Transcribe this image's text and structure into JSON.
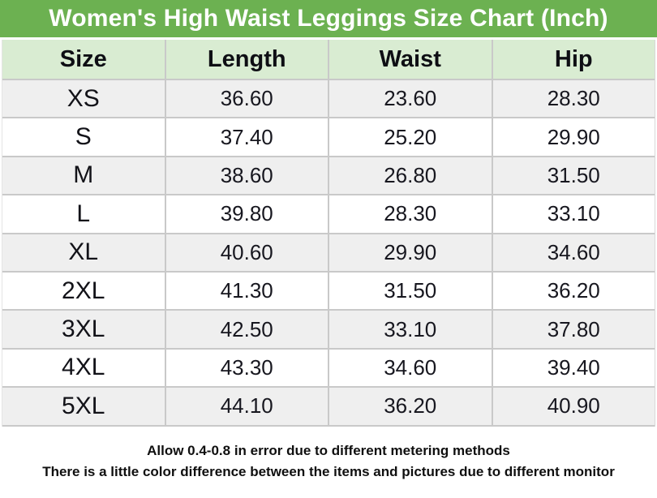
{
  "title": "Women's High Waist Leggings Size Chart (Inch)",
  "table": {
    "columns": [
      "Size",
      "Length",
      "Waist",
      "Hip"
    ],
    "rows": [
      {
        "size": "XS",
        "length": "36.60",
        "waist": "23.60",
        "hip": "28.30"
      },
      {
        "size": "S",
        "length": "37.40",
        "waist": "25.20",
        "hip": "29.90"
      },
      {
        "size": "M",
        "length": "38.60",
        "waist": "26.80",
        "hip": "31.50"
      },
      {
        "size": "L",
        "length": "39.80",
        "waist": "28.30",
        "hip": "33.10"
      },
      {
        "size": "XL",
        "length": "40.60",
        "waist": "29.90",
        "hip": "34.60"
      },
      {
        "size": "2XL",
        "length": "41.30",
        "waist": "31.50",
        "hip": "36.20"
      },
      {
        "size": "3XL",
        "length": "42.50",
        "waist": "33.10",
        "hip": "37.80"
      },
      {
        "size": "4XL",
        "length": "43.30",
        "waist": "34.60",
        "hip": "39.40"
      },
      {
        "size": "5XL",
        "length": "44.10",
        "waist": "36.20",
        "hip": "40.90"
      }
    ]
  },
  "footer": {
    "line1": "Allow 0.4-0.8 in error due to different metering methods",
    "line2": "There is a little color difference between the items and pictures due to different monitor"
  },
  "colors": {
    "title_bg": "#6cb151",
    "header_bg": "#d9ecd2",
    "row_alt_bg": "#efefef",
    "row_bg": "#ffffff",
    "border": "#c9c9c9",
    "title_text": "#ffffff"
  },
  "chart_data": {
    "type": "table",
    "title": "Women's High Waist Leggings Size Chart (Inch)",
    "columns": [
      "Size",
      "Length",
      "Waist",
      "Hip"
    ],
    "unit": "inch",
    "rows": [
      [
        "XS",
        36.6,
        23.6,
        28.3
      ],
      [
        "S",
        37.4,
        25.2,
        29.9
      ],
      [
        "M",
        38.6,
        26.8,
        31.5
      ],
      [
        "L",
        39.8,
        28.3,
        33.1
      ],
      [
        "XL",
        40.6,
        29.9,
        34.6
      ],
      [
        "2XL",
        41.3,
        31.5,
        36.2
      ],
      [
        "3XL",
        42.5,
        33.1,
        37.8
      ],
      [
        "4XL",
        43.3,
        34.6,
        39.4
      ],
      [
        "5XL",
        44.1,
        36.2,
        40.9
      ]
    ],
    "notes": [
      "Allow 0.4-0.8 in error due to different metering methods",
      "There is a little color difference between the items and pictures due to different monitor"
    ]
  }
}
